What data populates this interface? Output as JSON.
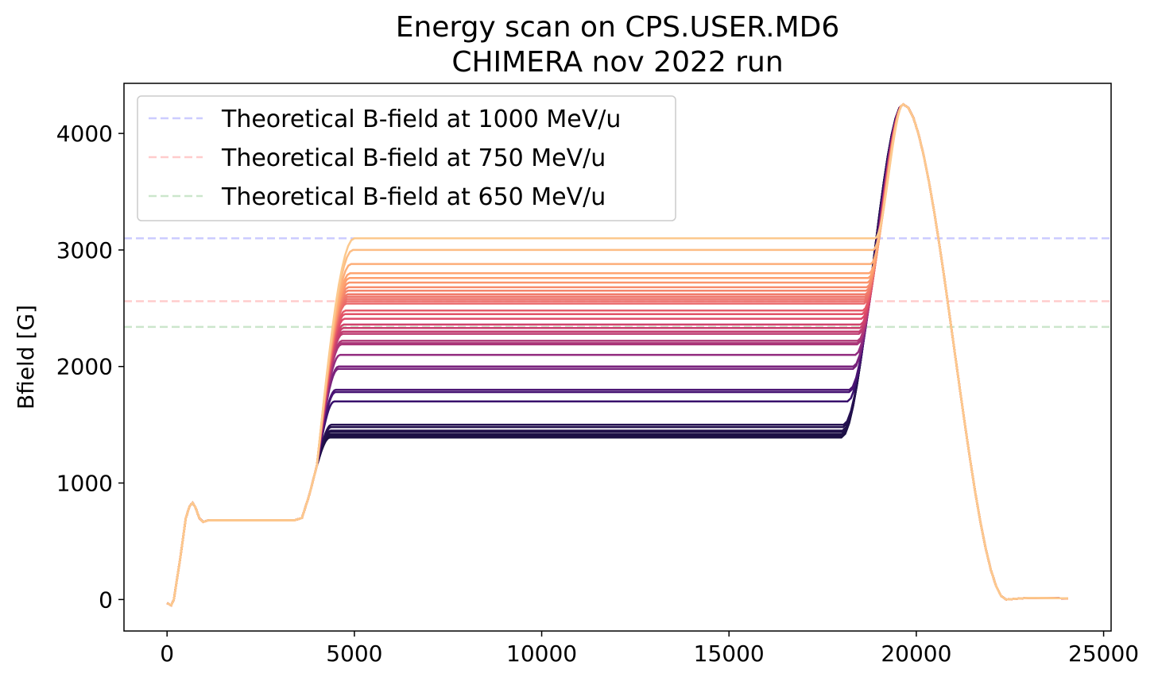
{
  "chart_data": {
    "type": "line",
    "title": "Energy scan on CPS.USER.MD6",
    "subtitle": "CHIMERA nov 2022 run",
    "xlabel": "",
    "ylabel": "Bfield [G]",
    "xlim": [
      -1150,
      25200
    ],
    "ylim": [
      -270,
      4430
    ],
    "x_ticks": [
      0,
      5000,
      10000,
      15000,
      20000,
      25000
    ],
    "x_tick_labels": [
      "0",
      "5000",
      "10000",
      "15000",
      "20000",
      "25000"
    ],
    "y_ticks": [
      0,
      1000,
      2000,
      3000,
      4000
    ],
    "y_tick_labels": [
      "0",
      "1000",
      "2000",
      "3000",
      "4000"
    ],
    "grid": false,
    "legend": {
      "position": "upper-left",
      "entries": [
        {
          "label": "Theoretical B-field at 1000 MeV/u",
          "color": "#0000ff",
          "style": "dashed"
        },
        {
          "label": "Theoretical B-field at 750 MeV/u",
          "color": "#ff0000",
          "style": "dashed"
        },
        {
          "label": "Theoretical B-field at 650 MeV/u",
          "color": "#008000",
          "style": "dashed"
        }
      ]
    },
    "reference_lines": [
      {
        "y": 3100,
        "color": "#0000ff"
      },
      {
        "y": 2560,
        "color": "#ff0000"
      },
      {
        "y": 2340,
        "color": "#008000"
      }
    ],
    "flat_top_levels": [
      1390,
      1400,
      1410,
      1420,
      1440,
      1450,
      1480,
      1500,
      1700,
      1780,
      1800,
      1980,
      2000,
      2100,
      2190,
      2200,
      2220,
      2280,
      2300,
      2330,
      2360,
      2410,
      2450,
      2480,
      2540,
      2560,
      2580,
      2600,
      2620,
      2650,
      2680,
      2720,
      2760,
      2800,
      2880,
      3000,
      3100
    ],
    "cycle_profile": {
      "x": [
        0,
        110,
        180,
        350,
        500,
        600,
        680,
        760,
        860,
        960,
        1100,
        3400,
        3600,
        3800,
        4000
      ],
      "y": [
        -30,
        -50,
        0,
        350,
        700,
        800,
        830,
        790,
        700,
        665,
        680,
        680,
        700,
        900,
        1150
      ],
      "ramp_end_x": 5000,
      "flat_end_x": 18000,
      "peak_x": 19650,
      "peak_y": 4250,
      "fall_end_x": 22400,
      "after_x": [
        22600,
        23000,
        24050
      ],
      "after_y": [
        5,
        15,
        10
      ]
    },
    "colormap": [
      "#1a1042",
      "#3b0f70",
      "#8c2981",
      "#de4968",
      "#fe9f6d",
      "#fcc98e"
    ]
  }
}
